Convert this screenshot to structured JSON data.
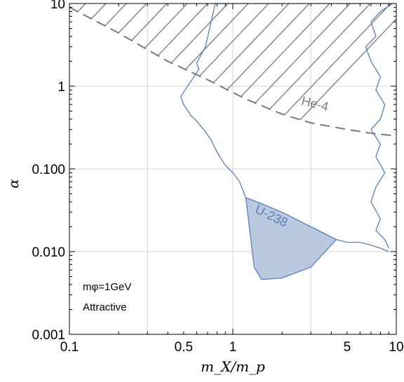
{
  "chart_data": {
    "type": "line",
    "xlabel": "m_X/m_p",
    "ylabel": "α",
    "xscale": "log",
    "yscale": "log",
    "xlim": [
      0.1,
      10
    ],
    "ylim": [
      0.001,
      10
    ],
    "grid": true,
    "x_ticks": [
      {
        "value": 0.1,
        "label": "0.1"
      },
      {
        "value": 0.5,
        "label": "0.5"
      },
      {
        "value": 1,
        "label": "1"
      },
      {
        "value": 5,
        "label": "5"
      },
      {
        "value": 10,
        "label": "10"
      }
    ],
    "x_gridlines": [
      0.3,
      1,
      3
    ],
    "y_ticks": [
      {
        "value": 0.001,
        "label": "0.001"
      },
      {
        "value": 0.01,
        "label": "0.010"
      },
      {
        "value": 0.1,
        "label": "0.100"
      },
      {
        "value": 1,
        "label": "1"
      },
      {
        "value": 10,
        "label": "10"
      }
    ],
    "y_gridlines": [
      0.01,
      0.1,
      1,
      10
    ],
    "annotations": [
      "mφ=1GeV",
      "Attractive"
    ],
    "colors": {
      "he4": "#7a7a7a",
      "u238": "#5b7fb5",
      "u238_fill": "#b9c9e0",
      "grid": "#d4d4d4"
    },
    "series": [
      {
        "name": "He-4",
        "style": "dashed",
        "points": [
          [
            0.1,
            9.0
          ],
          [
            0.2,
            4.4
          ],
          [
            0.4,
            2.0
          ],
          [
            0.7,
            1.2
          ],
          [
            1.2,
            0.7
          ],
          [
            2.0,
            0.46
          ],
          [
            3.0,
            0.36
          ],
          [
            5.0,
            0.3
          ],
          [
            7.0,
            0.27
          ],
          [
            10.0,
            0.25
          ]
        ]
      },
      {
        "name": "U-238",
        "style": "solid",
        "points": [
          [
            0.78,
            10.0
          ],
          [
            0.68,
            3.0
          ],
          [
            0.6,
            1.9
          ],
          [
            0.62,
            1.6
          ],
          [
            0.57,
            1.25
          ],
          [
            0.48,
            0.75
          ],
          [
            0.5,
            0.6
          ],
          [
            0.55,
            0.45
          ],
          [
            0.6,
            0.38
          ],
          [
            0.68,
            0.28
          ],
          [
            0.74,
            0.22
          ],
          [
            0.8,
            0.16
          ],
          [
            0.9,
            0.11
          ],
          [
            1.0,
            0.09
          ],
          [
            1.1,
            0.07
          ],
          [
            1.2,
            0.045
          ],
          [
            1.5,
            0.034
          ],
          [
            2.0,
            0.028
          ],
          [
            3.0,
            0.02
          ],
          [
            4.3,
            0.014
          ],
          [
            5.0,
            0.013
          ],
          [
            6.0,
            0.013
          ],
          [
            7.0,
            0.012
          ],
          [
            8.0,
            0.011
          ],
          [
            9.0,
            0.01
          ]
        ]
      },
      {
        "name": "U-238 region",
        "style": "filled",
        "points": [
          [
            1.2,
            0.045
          ],
          [
            1.35,
            0.0065
          ],
          [
            1.5,
            0.0046
          ],
          [
            2.0,
            0.0048
          ],
          [
            3.0,
            0.0065
          ],
          [
            4.3,
            0.014
          ],
          [
            3.0,
            0.02
          ],
          [
            2.0,
            0.03
          ],
          [
            1.5,
            0.038
          ],
          [
            1.2,
            0.045
          ]
        ]
      },
      {
        "name": "U-238 right edge",
        "style": "solid",
        "points": [
          [
            9.5,
            10.0
          ],
          [
            8.0,
            8.0
          ],
          [
            7.0,
            6.0
          ],
          [
            7.5,
            4.0
          ],
          [
            6.5,
            3.0
          ],
          [
            7.0,
            2.0
          ],
          [
            8.0,
            1.3
          ],
          [
            7.5,
            0.9
          ],
          [
            8.5,
            0.6
          ],
          [
            8.0,
            0.4
          ],
          [
            7.0,
            0.3
          ],
          [
            8.0,
            0.2
          ],
          [
            7.5,
            0.14
          ],
          [
            8.5,
            0.09
          ],
          [
            7.5,
            0.06
          ],
          [
            7.0,
            0.04
          ],
          [
            8.0,
            0.025
          ],
          [
            7.5,
            0.018
          ],
          [
            8.5,
            0.014
          ],
          [
            9.0,
            0.011
          ]
        ]
      }
    ],
    "texts": [
      {
        "text": "He-4",
        "at": [
          2.6,
          0.6
        ],
        "angle": 14,
        "color": "#7a7a7a"
      },
      {
        "text": "U-238",
        "at": [
          1.35,
          0.03
        ],
        "angle": 26,
        "color": "#5b7fb5"
      }
    ]
  }
}
